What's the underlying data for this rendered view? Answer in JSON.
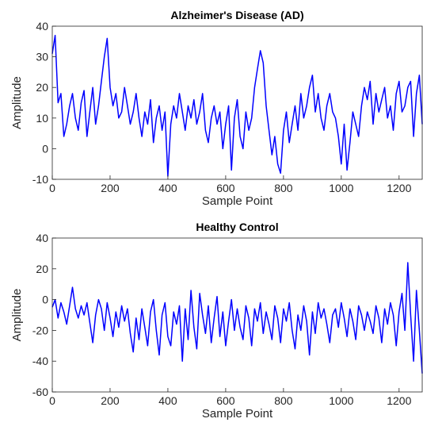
{
  "chart_data": [
    {
      "type": "line",
      "title": "Alzheimer's Disease (AD)",
      "xlabel": "Sample Point",
      "ylabel": "Amplitude",
      "xlim": [
        0,
        1280
      ],
      "ylim": [
        -10,
        40
      ],
      "xticks": [
        0,
        200,
        400,
        600,
        800,
        1000,
        1200
      ],
      "yticks": [
        -10,
        0,
        10,
        20,
        30,
        40
      ],
      "series": [
        {
          "color": "#0000ff",
          "x": [
            0,
            10,
            20,
            30,
            40,
            50,
            60,
            70,
            80,
            90,
            100,
            110,
            120,
            130,
            140,
            150,
            160,
            170,
            180,
            190,
            200,
            210,
            220,
            230,
            240,
            250,
            260,
            270,
            280,
            290,
            300,
            310,
            320,
            330,
            340,
            350,
            360,
            370,
            380,
            390,
            400,
            410,
            420,
            430,
            440,
            450,
            460,
            470,
            480,
            490,
            500,
            510,
            520,
            530,
            540,
            550,
            560,
            570,
            580,
            590,
            600,
            610,
            620,
            630,
            640,
            650,
            660,
            670,
            680,
            690,
            700,
            710,
            720,
            730,
            740,
            750,
            760,
            770,
            780,
            790,
            800,
            810,
            820,
            830,
            840,
            850,
            860,
            870,
            880,
            890,
            900,
            910,
            920,
            930,
            940,
            950,
            960,
            970,
            980,
            990,
            1000,
            1010,
            1020,
            1030,
            1040,
            1050,
            1060,
            1070,
            1080,
            1090,
            1100,
            1110,
            1120,
            1130,
            1140,
            1150,
            1160,
            1170,
            1180,
            1190,
            1200,
            1210,
            1220,
            1230,
            1240,
            1250,
            1260,
            1270,
            1280
          ],
          "values": [
            31,
            37,
            15,
            18,
            4,
            8,
            14,
            18,
            10,
            6,
            15,
            19,
            4,
            12,
            20,
            8,
            14,
            22,
            30,
            36,
            20,
            14,
            18,
            10,
            12,
            20,
            14,
            8,
            12,
            18,
            10,
            4,
            12,
            8,
            16,
            2,
            10,
            14,
            6,
            12,
            -9,
            8,
            14,
            10,
            18,
            12,
            6,
            14,
            10,
            16,
            8,
            12,
            18,
            6,
            2,
            10,
            14,
            8,
            12,
            0,
            8,
            14,
            -7,
            10,
            16,
            4,
            0,
            12,
            6,
            10,
            20,
            26,
            32,
            28,
            14,
            6,
            -2,
            4,
            -5,
            -8,
            6,
            12,
            2,
            8,
            14,
            6,
            18,
            10,
            14,
            20,
            24,
            12,
            18,
            10,
            6,
            14,
            18,
            12,
            10,
            4,
            -5,
            8,
            -7,
            2,
            12,
            8,
            4,
            14,
            20,
            16,
            22,
            8,
            18,
            12,
            16,
            20,
            10,
            14,
            6,
            18,
            22,
            12,
            14,
            20,
            22,
            4,
            18,
            24,
            8
          ]
        }
      ]
    },
    {
      "type": "line",
      "title": "Healthy Control",
      "xlabel": "Sample Point",
      "ylabel": "Amplitude",
      "xlim": [
        0,
        1280
      ],
      "ylim": [
        -60,
        40
      ],
      "xticks": [
        0,
        200,
        400,
        600,
        800,
        1000,
        1200
      ],
      "yticks": [
        -60,
        -40,
        -20,
        0,
        20,
        40
      ],
      "series": [
        {
          "color": "#0000ff",
          "x": [
            0,
            10,
            20,
            30,
            40,
            50,
            60,
            70,
            80,
            90,
            100,
            110,
            120,
            130,
            140,
            150,
            160,
            170,
            180,
            190,
            200,
            210,
            220,
            230,
            240,
            250,
            260,
            270,
            280,
            290,
            300,
            310,
            320,
            330,
            340,
            350,
            360,
            370,
            380,
            390,
            400,
            410,
            420,
            430,
            440,
            450,
            460,
            470,
            480,
            490,
            500,
            510,
            520,
            530,
            540,
            550,
            560,
            570,
            580,
            590,
            600,
            610,
            620,
            630,
            640,
            650,
            660,
            670,
            680,
            690,
            700,
            710,
            720,
            730,
            740,
            750,
            760,
            770,
            780,
            790,
            800,
            810,
            820,
            830,
            840,
            850,
            860,
            870,
            880,
            890,
            900,
            910,
            920,
            930,
            940,
            950,
            960,
            970,
            980,
            990,
            1000,
            1010,
            1020,
            1030,
            1040,
            1050,
            1060,
            1070,
            1080,
            1090,
            1100,
            1110,
            1120,
            1130,
            1140,
            1150,
            1160,
            1170,
            1180,
            1190,
            1200,
            1210,
            1220,
            1230,
            1240,
            1250,
            1260,
            1270,
            1280
          ],
          "values": [
            -5,
            0,
            -12,
            -2,
            -8,
            -16,
            -4,
            8,
            -6,
            -12,
            -4,
            -10,
            -2,
            -15,
            -28,
            -10,
            0,
            -6,
            -20,
            -2,
            -12,
            -24,
            -8,
            -18,
            -4,
            -14,
            -6,
            -22,
            -34,
            -12,
            -26,
            -6,
            -18,
            -30,
            -8,
            0,
            -20,
            -36,
            -10,
            -2,
            -24,
            -30,
            -8,
            -16,
            -4,
            -40,
            -6,
            -26,
            6,
            -18,
            -32,
            4,
            -10,
            -22,
            -4,
            -28,
            -12,
            2,
            -24,
            -8,
            -30,
            -14,
            0,
            -20,
            -6,
            -18,
            -26,
            -4,
            -12,
            -30,
            -6,
            -14,
            -2,
            -22,
            -8,
            -16,
            -26,
            -4,
            -12,
            -28,
            -6,
            -14,
            -2,
            -20,
            -32,
            -10,
            -20,
            -4,
            -14,
            -36,
            -8,
            -22,
            -2,
            -12,
            -6,
            -16,
            -28,
            -10,
            -6,
            -18,
            -2,
            -12,
            -24,
            -6,
            -14,
            -26,
            -4,
            -10,
            -20,
            -8,
            -14,
            -22,
            -4,
            -12,
            -28,
            -6,
            -16,
            -2,
            -10,
            -30,
            -8,
            4,
            -20,
            24,
            -10,
            -40,
            6,
            -20,
            -48
          ]
        }
      ]
    }
  ]
}
